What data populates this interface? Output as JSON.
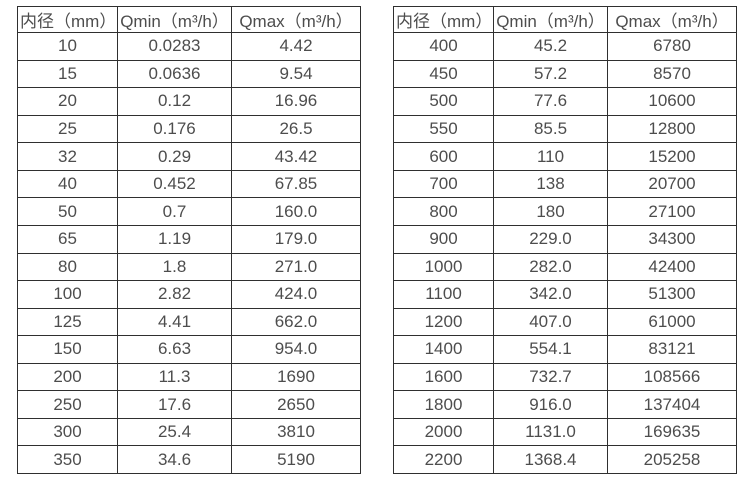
{
  "page": {
    "background_color": "#ffffff",
    "text_color": "#4d4d4d",
    "border_color": "#2f2f2f"
  },
  "tables": [
    {
      "name": "flow-table-small-diameters",
      "headers": [
        "内径（mm）",
        "Qmin（m³/h）",
        "Qmax（m³/h）"
      ],
      "rows": [
        [
          "10",
          "0.0283",
          "4.42"
        ],
        [
          "15",
          "0.0636",
          "9.54"
        ],
        [
          "20",
          "0.12",
          "16.96"
        ],
        [
          "25",
          "0.176",
          "26.5"
        ],
        [
          "32",
          "0.29",
          "43.42"
        ],
        [
          "40",
          "0.452",
          "67.85"
        ],
        [
          "50",
          "0.7",
          "160.0"
        ],
        [
          "65",
          "1.19",
          "179.0"
        ],
        [
          "80",
          "1.8",
          "271.0"
        ],
        [
          "100",
          "2.82",
          "424.0"
        ],
        [
          "125",
          "4.41",
          "662.0"
        ],
        [
          "150",
          "6.63",
          "954.0"
        ],
        [
          "200",
          "11.3",
          "1690"
        ],
        [
          "250",
          "17.6",
          "2650"
        ],
        [
          "300",
          "25.4",
          "3810"
        ],
        [
          "350",
          "34.6",
          "5190"
        ]
      ]
    },
    {
      "name": "flow-table-large-diameters",
      "headers": [
        "内径（mm）",
        "Qmin（m³/h）",
        "Qmax（m³/h）"
      ],
      "rows": [
        [
          "400",
          "45.2",
          "6780"
        ],
        [
          "450",
          "57.2",
          "8570"
        ],
        [
          "500",
          "77.6",
          "10600"
        ],
        [
          "550",
          "85.5",
          "12800"
        ],
        [
          "600",
          "110",
          "15200"
        ],
        [
          "700",
          "138",
          "20700"
        ],
        [
          "800",
          "180",
          "27100"
        ],
        [
          "900",
          "229.0",
          "34300"
        ],
        [
          "1000",
          "282.0",
          "42400"
        ],
        [
          "1100",
          "342.0",
          "51300"
        ],
        [
          "1200",
          "407.0",
          "61000"
        ],
        [
          "1400",
          "554.1",
          "83121"
        ],
        [
          "1600",
          "732.7",
          "108566"
        ],
        [
          "1800",
          "916.0",
          "137404"
        ],
        [
          "2000",
          "1131.0",
          "169635"
        ],
        [
          "2200",
          "1368.4",
          "205258"
        ]
      ]
    }
  ]
}
